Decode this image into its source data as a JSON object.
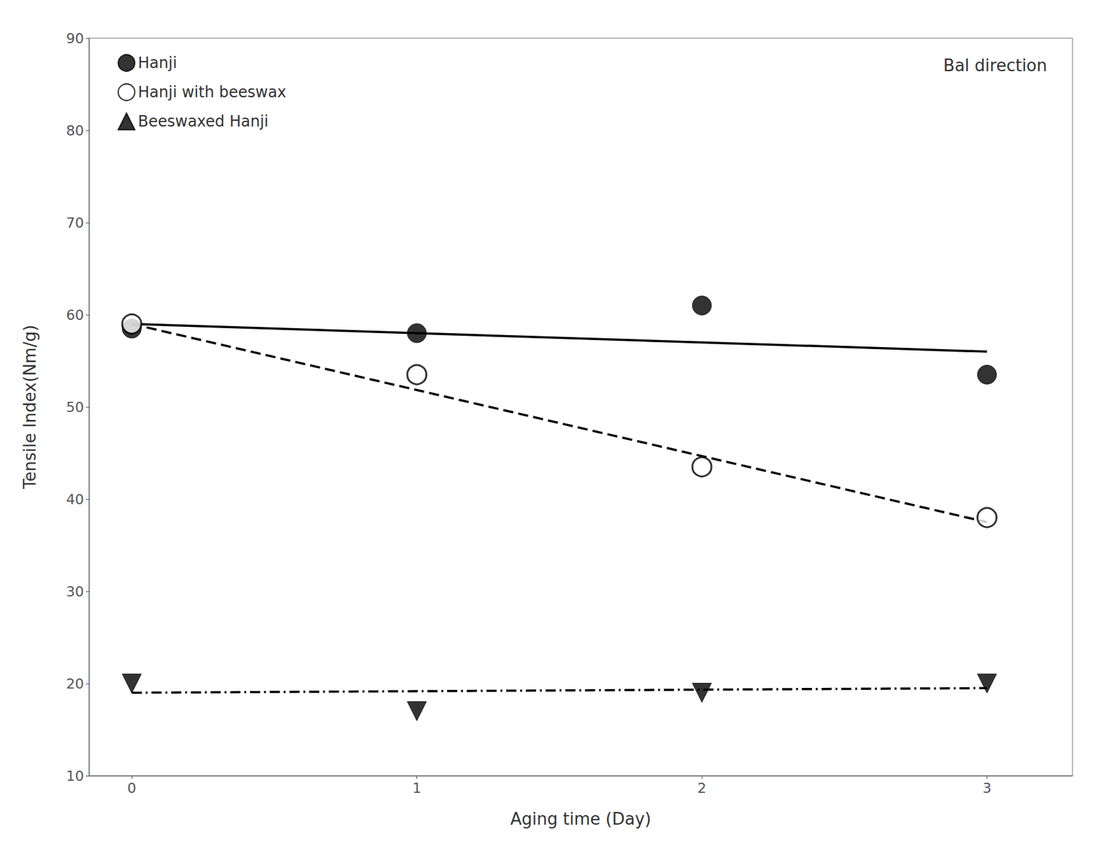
{
  "chart_data": {
    "type": "scatter",
    "xlabel": "Aging time (Day)",
    "ylabel": "Tensile Index(Nm/g)",
    "annotation": "Bal direction",
    "xlim": [
      -0.15,
      3.3
    ],
    "xticks": [
      0,
      1,
      2,
      3
    ],
    "ylim": [
      10,
      90
    ],
    "yticks": [
      10,
      20,
      30,
      40,
      50,
      60,
      70,
      80,
      90
    ],
    "grid": false,
    "legend": "upper left",
    "series": [
      {
        "type": "line",
        "x": [
          0,
          3
        ],
        "values": [
          59.0,
          56.0
        ],
        "color": "black",
        "line_style": "solid"
      },
      {
        "type": "line",
        "x": [
          0,
          3
        ],
        "values": [
          59.0,
          37.5
        ],
        "color": "black",
        "line_style": "dashed"
      },
      {
        "type": "line",
        "x": [
          0,
          3
        ],
        "values": [
          19.0,
          19.5
        ],
        "color": "black",
        "line_style": "dashdot"
      },
      {
        "name": "Hanji",
        "type": "scatter",
        "x": [
          0,
          1,
          2,
          3
        ],
        "values": [
          58.5,
          58.0,
          61.0,
          53.5
        ],
        "color": "black",
        "marker": "circle"
      },
      {
        "name": "Hanji with beeswax",
        "type": "scatter",
        "x": [
          0,
          1,
          2,
          3
        ],
        "values": [
          59.0,
          53.5,
          43.5,
          38.0
        ],
        "color": "black",
        "marker": "open_circle"
      },
      {
        "name": "Beeswaxed Hanji",
        "type": "scatter",
        "x": [
          0,
          1,
          2,
          3
        ],
        "values": [
          20.0,
          17.0,
          19.0,
          20.0
        ],
        "color": "black",
        "marker": "triangle_down"
      }
    ]
  }
}
